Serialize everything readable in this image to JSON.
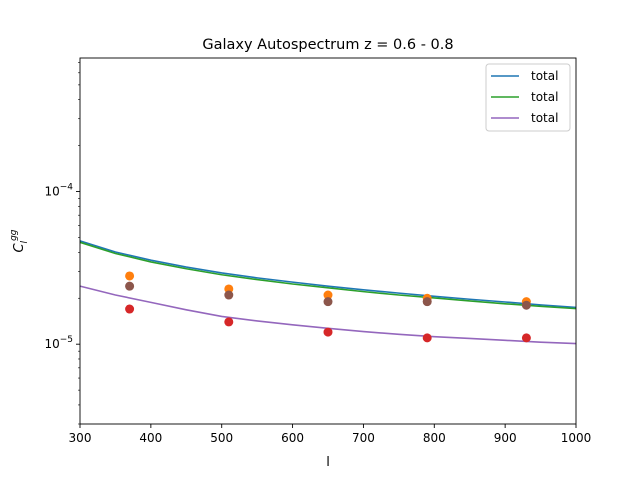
{
  "chart_data": {
    "type": "line",
    "title": "Galaxy Autospectrum z = 0.6 - 0.8",
    "xlabel": "l",
    "ylabel": "C_l^gg",
    "xscale": "linear",
    "yscale": "log",
    "xlim": [
      300,
      1000
    ],
    "ylim": [
      3e-06,
      0.00075
    ],
    "xticks": [
      300,
      400,
      500,
      600,
      700,
      800,
      900,
      1000
    ],
    "yticks": [
      {
        "value": 0.0001,
        "base": "10",
        "exp": "−4"
      },
      {
        "value": 1e-05,
        "base": "10",
        "exp": "−5"
      }
    ],
    "grid": false,
    "legend": {
      "placement": "upper-right",
      "entries": [
        "total",
        "total",
        "total"
      ]
    },
    "series": [
      {
        "name": "total",
        "kind": "line",
        "color": "#1f77b4",
        "x": [
          300,
          350,
          400,
          450,
          500,
          550,
          600,
          650,
          700,
          750,
          800,
          850,
          900,
          950,
          1000
        ],
        "y": [
          4.75e-05,
          4.02e-05,
          3.55e-05,
          3.2e-05,
          2.93e-05,
          2.72e-05,
          2.55e-05,
          2.4e-05,
          2.27e-05,
          2.16e-05,
          2.06e-05,
          1.97e-05,
          1.89e-05,
          1.81e-05,
          1.74e-05
        ]
      },
      {
        "name": "total",
        "kind": "line",
        "color": "#2ca02c",
        "x": [
          300,
          350,
          400,
          450,
          500,
          550,
          600,
          650,
          700,
          750,
          800,
          850,
          900,
          950,
          1000
        ],
        "y": [
          4.65e-05,
          3.93e-05,
          3.46e-05,
          3.12e-05,
          2.85e-05,
          2.65e-05,
          2.48e-05,
          2.34e-05,
          2.21e-05,
          2.1e-05,
          2.01e-05,
          1.92e-05,
          1.84e-05,
          1.77e-05,
          1.71e-05
        ]
      },
      {
        "name": "total",
        "kind": "line",
        "color": "#9467bd",
        "x": [
          300,
          350,
          400,
          450,
          500,
          550,
          600,
          650,
          700,
          750,
          800,
          850,
          900,
          950,
          1000
        ],
        "y": [
          2.4e-05,
          2.1e-05,
          1.88e-05,
          1.68e-05,
          1.52e-05,
          1.42e-05,
          1.34e-05,
          1.27e-05,
          1.21e-05,
          1.16e-05,
          1.12e-05,
          1.09e-05,
          1.06e-05,
          1.03e-05,
          1.01e-05
        ]
      },
      {
        "kind": "points",
        "color": "#ff7f0e",
        "x": [
          370,
          510,
          650,
          790,
          930
        ],
        "y": [
          2.8e-05,
          2.3e-05,
          2.1e-05,
          2e-05,
          1.9e-05
        ]
      },
      {
        "kind": "points",
        "color": "#8c564b",
        "x": [
          370,
          510,
          650,
          790,
          930
        ],
        "y": [
          2.4e-05,
          2.1e-05,
          1.9e-05,
          1.9e-05,
          1.8e-05
        ]
      },
      {
        "kind": "points",
        "color": "#d62728",
        "x": [
          370,
          510,
          650,
          790,
          930
        ],
        "y": [
          1.7e-05,
          1.4e-05,
          1.2e-05,
          1.1e-05,
          1.1e-05
        ]
      }
    ]
  }
}
